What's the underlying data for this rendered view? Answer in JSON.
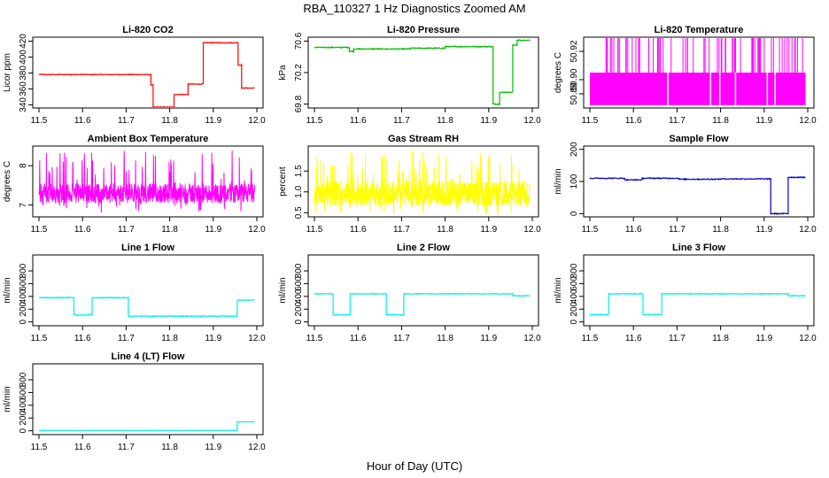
{
  "title": "RBA_110327  1 Hz Diagnostics Zoomed AM",
  "xlabel": "Hour of Day (UTC)",
  "chart_data": [
    {
      "type": "line",
      "title": "Li-820 CO2",
      "ylabel": "Licor ppm",
      "color": "#ff0000",
      "xlim": [
        11.5,
        12.0
      ],
      "xticks": [
        11.5,
        11.6,
        11.7,
        11.8,
        11.9,
        12.0
      ],
      "ylim": [
        336,
        425
      ],
      "yticks": [
        340,
        360,
        380,
        400,
        420
      ],
      "noise": 0.5,
      "segments": [
        [
          11.5,
          11.757,
          378
        ],
        [
          11.757,
          11.762,
          365
        ],
        [
          11.762,
          11.81,
          337
        ],
        [
          11.81,
          11.842,
          353
        ],
        [
          11.842,
          11.877,
          366
        ],
        [
          11.877,
          11.957,
          418
        ],
        [
          11.957,
          11.965,
          390
        ],
        [
          11.965,
          11.995,
          361
        ]
      ]
    },
    {
      "type": "line",
      "title": "Li-820 Pressure",
      "ylabel": "kPa",
      "color": "#00bb00",
      "xlim": [
        11.5,
        12.0
      ],
      "xticks": [
        11.5,
        11.6,
        11.7,
        11.8,
        11.9,
        12.0
      ],
      "ylim": [
        69.75,
        70.65
      ],
      "yticks": [
        69.8,
        70.2,
        70.6
      ],
      "noise": 0.006,
      "segments": [
        [
          11.5,
          11.58,
          70.52
        ],
        [
          11.58,
          11.59,
          70.47
        ],
        [
          11.59,
          11.72,
          70.5
        ],
        [
          11.72,
          11.8,
          70.51
        ],
        [
          11.8,
          11.91,
          70.53
        ],
        [
          11.91,
          11.925,
          69.8
        ],
        [
          11.925,
          11.955,
          69.95
        ],
        [
          11.955,
          11.965,
          70.55
        ],
        [
          11.965,
          11.995,
          70.61
        ]
      ]
    },
    {
      "type": "band",
      "title": "Li-820 Temperature",
      "ylabel": "degrees C",
      "color": "#ff00ff",
      "xlim": [
        11.5,
        12.0
      ],
      "xticks": [
        11.5,
        11.6,
        11.7,
        11.8,
        11.9,
        12.0
      ],
      "ylim": [
        50.88,
        50.93
      ],
      "yticks": [
        50.89,
        50.9,
        50.92
      ],
      "base_range": [
        50.882,
        50.905
      ],
      "spike_to": 50.93
    },
    {
      "type": "noise",
      "title": "Ambient Box Temperature",
      "ylabel": "degrees C",
      "color": "#ff00ff",
      "xlim": [
        11.5,
        12.0
      ],
      "xticks": [
        11.5,
        11.6,
        11.7,
        11.8,
        11.9,
        12.0
      ],
      "ylim": [
        6.7,
        8.5
      ],
      "yticks": [
        7.0,
        8.0
      ],
      "center": 7.3,
      "spread": 0.25,
      "max": 8.4,
      "min": 6.8
    },
    {
      "type": "noise",
      "title": "Gas Stream RH",
      "ylabel": "percent",
      "color": "#ffff00",
      "xlim": [
        11.5,
        12.0
      ],
      "xticks": [
        11.5,
        11.6,
        11.7,
        11.8,
        11.9,
        12.0
      ],
      "ylim": [
        0.4,
        2.1
      ],
      "yticks": [
        0.5,
        1.0,
        1.5
      ],
      "center": 0.95,
      "spread": 0.3,
      "max": 2.0,
      "min": 0.45
    },
    {
      "type": "line",
      "title": "Sample Flow",
      "ylabel": "ml/min",
      "color": "#0000cc",
      "xlim": [
        11.5,
        12.0
      ],
      "xticks": [
        11.5,
        11.6,
        11.7,
        11.8,
        11.9,
        12.0
      ],
      "ylim": [
        -10,
        210
      ],
      "yticks": [
        0,
        100,
        200
      ],
      "noise": 1.5,
      "segments": [
        [
          11.5,
          11.58,
          110
        ],
        [
          11.58,
          11.62,
          105
        ],
        [
          11.62,
          11.705,
          110
        ],
        [
          11.705,
          11.8,
          107
        ],
        [
          11.8,
          11.915,
          108
        ],
        [
          11.915,
          11.955,
          0
        ],
        [
          11.955,
          11.995,
          113
        ]
      ]
    },
    {
      "type": "line",
      "title": "Line 1 Flow",
      "ylabel": "ml/min",
      "color": "#00eeee",
      "xlim": [
        11.5,
        12.0
      ],
      "xticks": [
        11.5,
        11.6,
        11.7,
        11.8,
        11.9,
        12.0
      ],
      "ylim": [
        -60,
        1050
      ],
      "yticks": [
        0,
        200,
        400,
        600,
        800
      ],
      "noise": 8,
      "segments": [
        [
          11.5,
          11.58,
          380
        ],
        [
          11.58,
          11.622,
          110
        ],
        [
          11.622,
          11.705,
          380
        ],
        [
          11.705,
          11.955,
          90
        ],
        [
          11.955,
          11.995,
          340
        ]
      ]
    },
    {
      "type": "line",
      "title": "Line 2 Flow",
      "ylabel": "ml/min",
      "color": "#00eeee",
      "xlim": [
        11.5,
        12.0
      ],
      "xticks": [
        11.5,
        11.6,
        11.7,
        11.8,
        11.9,
        12.0
      ],
      "ylim": [
        -60,
        1050
      ],
      "yticks": [
        0,
        200,
        400,
        600,
        800
      ],
      "noise": 6,
      "segments": [
        [
          11.5,
          11.543,
          440
        ],
        [
          11.543,
          11.582,
          110
        ],
        [
          11.582,
          11.665,
          440
        ],
        [
          11.665,
          11.705,
          110
        ],
        [
          11.705,
          11.955,
          440
        ],
        [
          11.955,
          11.995,
          410
        ]
      ]
    },
    {
      "type": "line",
      "title": "Line 3 Flow",
      "ylabel": "ml/min",
      "color": "#00eeee",
      "xlim": [
        11.5,
        12.0
      ],
      "xticks": [
        11.5,
        11.6,
        11.7,
        11.8,
        11.9,
        12.0
      ],
      "ylim": [
        -60,
        1050
      ],
      "yticks": [
        0,
        200,
        400,
        600,
        800
      ],
      "noise": 6,
      "segments": [
        [
          11.5,
          11.543,
          115
        ],
        [
          11.543,
          11.622,
          440
        ],
        [
          11.622,
          11.665,
          115
        ],
        [
          11.665,
          11.955,
          440
        ],
        [
          11.955,
          11.995,
          410
        ]
      ]
    },
    {
      "type": "line",
      "title": "Line 4 (LT) Flow",
      "ylabel": "ml/min",
      "color": "#00eeee",
      "xlim": [
        11.5,
        12.0
      ],
      "xticks": [
        11.5,
        11.6,
        11.7,
        11.8,
        11.9,
        12.0
      ],
      "ylim": [
        -60,
        1050
      ],
      "yticks": [
        0,
        200,
        400,
        600,
        800
      ],
      "noise": 2,
      "segments": [
        [
          11.5,
          11.955,
          5
        ],
        [
          11.955,
          11.995,
          140
        ]
      ]
    }
  ]
}
